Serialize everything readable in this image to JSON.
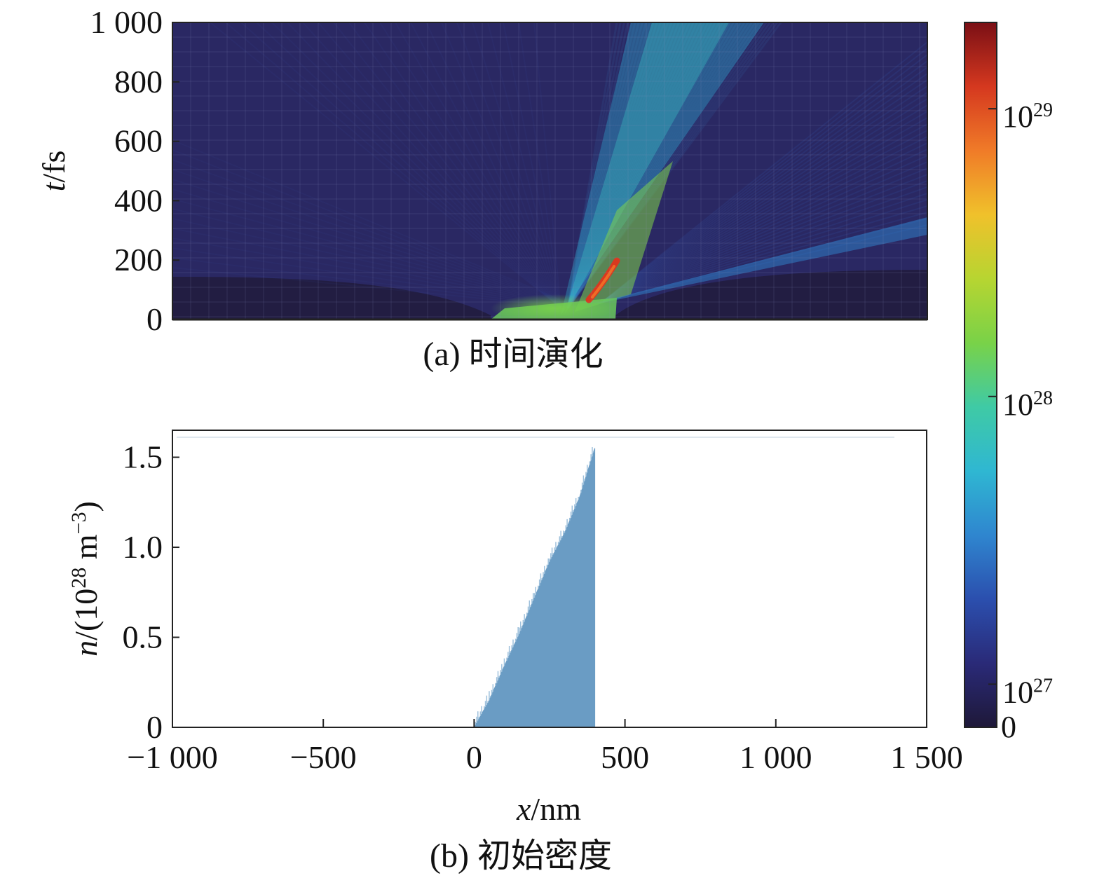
{
  "chart_data": [
    {
      "type": "heatmap",
      "caption": "(a) 时间演化",
      "ylabel_italic": "t",
      "ylabel_unit": "/fs",
      "xlim": [
        -1000,
        1500
      ],
      "ylim": [
        0,
        1000
      ],
      "y_ticks": [
        0,
        200,
        400,
        600,
        800,
        1000
      ],
      "y_tick_labels": [
        "0",
        "200",
        "400",
        "600",
        "800",
        "1 000"
      ],
      "colorbar": {
        "scale": "log",
        "ticks": [
          {
            "value": 1e+27,
            "base": "10",
            "exp": "27"
          },
          {
            "value": 1e+28,
            "base": "10",
            "exp": "28"
          },
          {
            "value": 1e+29,
            "base": "10",
            "exp": "29"
          }
        ],
        "zero_label": "0",
        "colormap": [
          "#1e1838",
          "#2a2a78",
          "#2b4fae",
          "#2f86cf",
          "#2fb7d2",
          "#3fcaa5",
          "#79d248",
          "#b7d531",
          "#f0c12b",
          "#f07b28",
          "#d5381f",
          "#7a0f15"
        ]
      }
    },
    {
      "type": "area",
      "caption": "(b) 初始密度",
      "xlabel_italic": "x",
      "xlabel_unit": "/nm",
      "ylabel_italic": "n",
      "ylabel_prefix": "/(10",
      "ylabel_exp1": "28",
      "ylabel_mid": " m",
      "ylabel_exp2": "−3",
      "ylabel_suffix": ")",
      "xlim": [
        -1000,
        1500
      ],
      "ylim": [
        0,
        1.65
      ],
      "x_ticks": [
        -1000,
        -500,
        0,
        500,
        1000,
        1500
      ],
      "x_tick_labels": [
        "−1 000",
        "−500",
        "0",
        "500",
        "1 000",
        "1 500"
      ],
      "y_ticks": [
        0,
        0.5,
        1.0,
        1.5
      ],
      "y_tick_labels": [
        "0",
        "0.5",
        "1.0",
        "1.5"
      ],
      "fill_color": "#6a9cc4",
      "x": [
        0,
        50,
        100,
        150,
        200,
        250,
        300,
        350,
        400,
        400
      ],
      "y": [
        0.0,
        0.15,
        0.34,
        0.52,
        0.72,
        0.92,
        1.08,
        1.28,
        1.55,
        0.0
      ]
    }
  ]
}
